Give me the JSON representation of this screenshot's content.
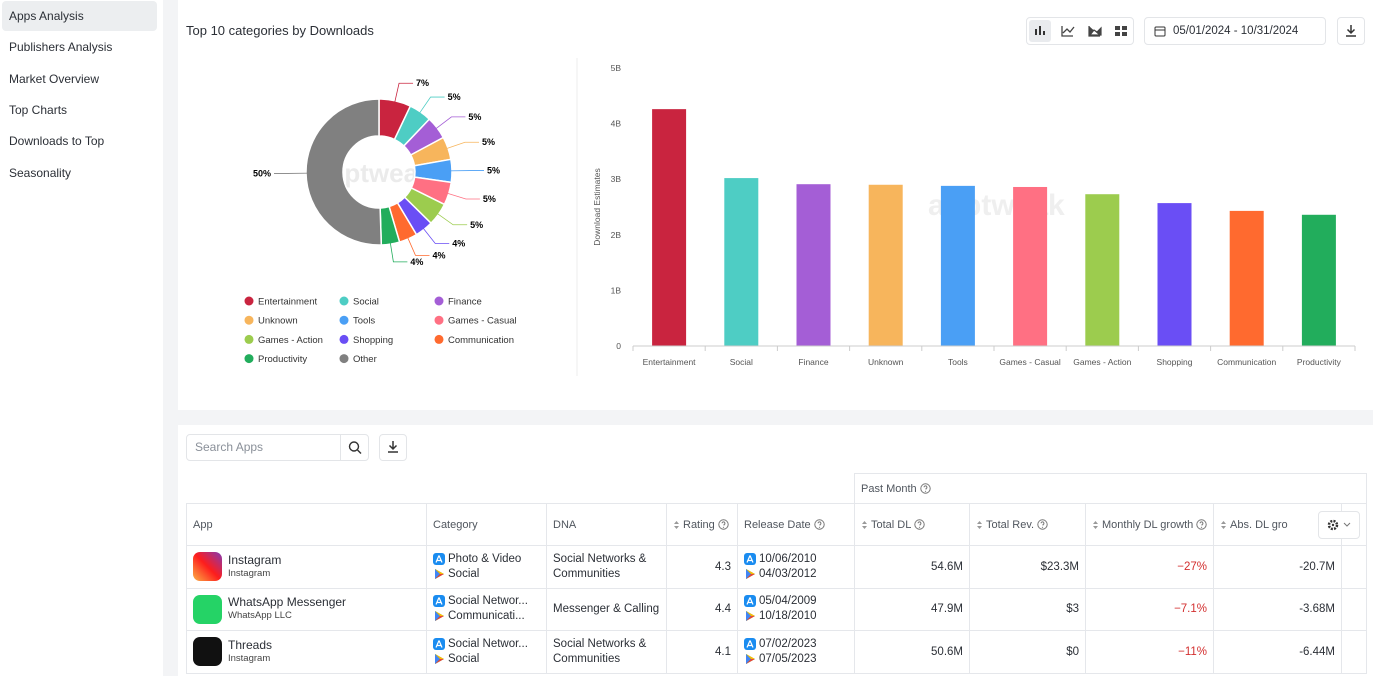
{
  "sidebar": {
    "items": [
      "Apps Analysis",
      "Publishers Analysis",
      "Market Overview",
      "Top Charts",
      "Downloads to Top",
      "Seasonality"
    ]
  },
  "watermark": "apptweak",
  "panel": {
    "title": "Top 10 categories by Downloads",
    "date_range": "05/01/2024 - 10/31/2024"
  },
  "chart_data": [
    {
      "type": "pie",
      "categories": [
        "Entertainment",
        "Social",
        "Finance",
        "Unknown",
        "Tools",
        "Games - Casual",
        "Games - Action",
        "Shopping",
        "Communication",
        "Productivity",
        "Other"
      ],
      "values": [
        7,
        5,
        5,
        5,
        5,
        5,
        5,
        4,
        4,
        4,
        50
      ],
      "value_labels": [
        "7%",
        "5%",
        "5%",
        "5%",
        "5%",
        "5%",
        "5%",
        "4%",
        "4%",
        "4%",
        "50%"
      ],
      "colors": [
        "#c9243f",
        "#4ecdc4",
        "#a45ed6",
        "#f7b55c",
        "#4a9ff5",
        "#ff7083",
        "#9ccc4e",
        "#6a4ef5",
        "#ff6a2f",
        "#22ad5c",
        "#808080"
      ]
    },
    {
      "type": "bar",
      "y_label": "Download Estimates",
      "categories": [
        "Entertainment",
        "Social",
        "Finance",
        "Unknown",
        "Tools",
        "Games - Casual",
        "Games - Action",
        "Shopping",
        "Communication",
        "Productivity"
      ],
      "values": [
        4.26,
        3.02,
        2.91,
        2.9,
        2.88,
        2.86,
        2.73,
        2.57,
        2.43,
        2.36
      ],
      "colors": [
        "#c9243f",
        "#4ecdc4",
        "#a45ed6",
        "#f7b55c",
        "#4a9ff5",
        "#ff7083",
        "#9ccc4e",
        "#6a4ef5",
        "#ff6a2f",
        "#22ad5c"
      ],
      "ylim": [
        0,
        5
      ],
      "yticks": [
        0,
        {
          "value": 1,
          "label": "1B"
        },
        {
          "value": 2,
          "label": "2B"
        },
        {
          "value": 3,
          "label": "3B"
        },
        {
          "value": 4,
          "label": "4B"
        },
        {
          "value": 5,
          "label": "5B"
        }
      ],
      "grid": false
    }
  ],
  "search": {
    "placeholder": "Search Apps"
  },
  "table": {
    "group_header": "Past Month",
    "columns": [
      "App",
      "Category",
      "DNA",
      "Rating",
      "Release Date",
      "Total DL",
      "Total Rev.",
      "Monthly DL growth",
      "Abs. DL gro"
    ],
    "rows": [
      {
        "app": "Instagram",
        "publisher": "Instagram",
        "category": [
          "Photo & Video",
          "Social"
        ],
        "dna": "Social Networks & Communities",
        "rating": "4.3",
        "release": [
          "10/06/2010",
          "04/03/2012"
        ],
        "total_dl": "54.6M",
        "total_rev": "$23.3M",
        "monthly_growth": "−27%",
        "abs_growth": "-20.7M"
      },
      {
        "app": "WhatsApp Messenger",
        "publisher": "WhatsApp LLC",
        "category": [
          "Social Networ...",
          "Communicati..."
        ],
        "dna": "Messenger & Calling",
        "rating": "4.4",
        "release": [
          "05/04/2009",
          "10/18/2010"
        ],
        "total_dl": "47.9M",
        "total_rev": "$3",
        "monthly_growth": "−7.1%",
        "abs_growth": "-3.68M"
      },
      {
        "app": "Threads",
        "publisher": "Instagram",
        "category": [
          "Social Networ...",
          "Social"
        ],
        "dna": "Social Networks & Communities",
        "rating": "4.1",
        "release": [
          "07/02/2023",
          "07/05/2023"
        ],
        "total_dl": "50.6M",
        "total_rev": "$0",
        "monthly_growth": "−11%",
        "abs_growth": "-6.44M"
      }
    ]
  }
}
